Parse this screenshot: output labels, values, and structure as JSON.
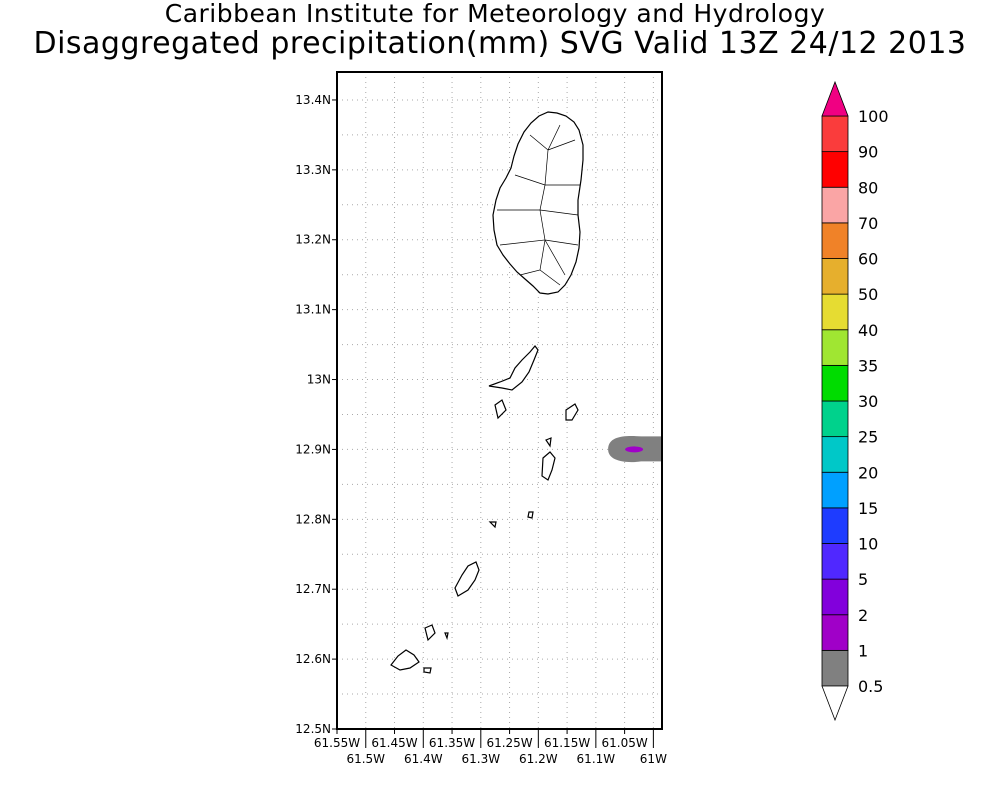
{
  "title": {
    "line1": "Caribbean Institute for Meteorology and Hydrology",
    "line2": "Disaggregated precipitation(mm) SVG Valid 13Z 24/12 2013"
  },
  "map": {
    "lon_range": [
      -61.55,
      -60.985
    ],
    "lat_range": [
      12.5,
      13.44
    ],
    "x_tick_labels": [
      {
        "lon": -61.55,
        "label": "61.55W"
      },
      {
        "lon": -61.5,
        "label": "61.5W"
      },
      {
        "lon": -61.45,
        "label": "61.45W"
      },
      {
        "lon": -61.4,
        "label": "61.4W"
      },
      {
        "lon": -61.35,
        "label": "61.35W"
      },
      {
        "lon": -61.3,
        "label": "61.3W"
      },
      {
        "lon": -61.25,
        "label": "61.25W"
      },
      {
        "lon": -61.2,
        "label": "61.2W"
      },
      {
        "lon": -61.15,
        "label": "61.15W"
      },
      {
        "lon": -61.1,
        "label": "61.1W"
      },
      {
        "lon": -61.05,
        "label": "61.05W"
      },
      {
        "lon": -61.0,
        "label": "61W"
      }
    ],
    "y_tick_labels": [
      {
        "lat": 13.4,
        "label": "13.4N"
      },
      {
        "lat": 13.3,
        "label": "13.3N"
      },
      {
        "lat": 13.2,
        "label": "13.2N"
      },
      {
        "lat": 13.1,
        "label": "13.1N"
      },
      {
        "lat": 13.0,
        "label": "13N"
      },
      {
        "lat": 12.9,
        "label": "12.9N"
      },
      {
        "lat": 12.8,
        "label": "12.8N"
      },
      {
        "lat": 12.7,
        "label": "12.7N"
      },
      {
        "lat": 12.6,
        "label": "12.6N"
      },
      {
        "lat": 12.5,
        "label": "12.5N"
      }
    ],
    "precip_features": [
      {
        "name": "rain-area",
        "lon": -61.03,
        "lat": 12.9,
        "category": "0.5-1",
        "color": "#808080"
      },
      {
        "name": "rain-core",
        "lon": -61.03,
        "lat": 12.9,
        "category": "1-2",
        "color": "#a000c8"
      }
    ]
  },
  "colorbar": {
    "over_color": "#f00082",
    "under_color": "#ffffff",
    "segments": [
      {
        "color": "#808080"
      },
      {
        "color": "#a000c8"
      },
      {
        "color": "#8200dc"
      },
      {
        "color": "#5028ff"
      },
      {
        "color": "#1e3cff"
      },
      {
        "color": "#00a0ff"
      },
      {
        "color": "#00c8c8"
      },
      {
        "color": "#00d28c"
      },
      {
        "color": "#00dc00"
      },
      {
        "color": "#a0e632"
      },
      {
        "color": "#e6dc32"
      },
      {
        "color": "#e6af2d"
      },
      {
        "color": "#f08228"
      },
      {
        "color": "#faa5a5"
      },
      {
        "color": "#ff0000"
      },
      {
        "color": "#fa3c3c"
      }
    ],
    "labels": [
      "0.5",
      "1",
      "2",
      "5",
      "10",
      "15",
      "20",
      "25",
      "30",
      "35",
      "40",
      "50",
      "60",
      "70",
      "80",
      "90",
      "100"
    ]
  }
}
